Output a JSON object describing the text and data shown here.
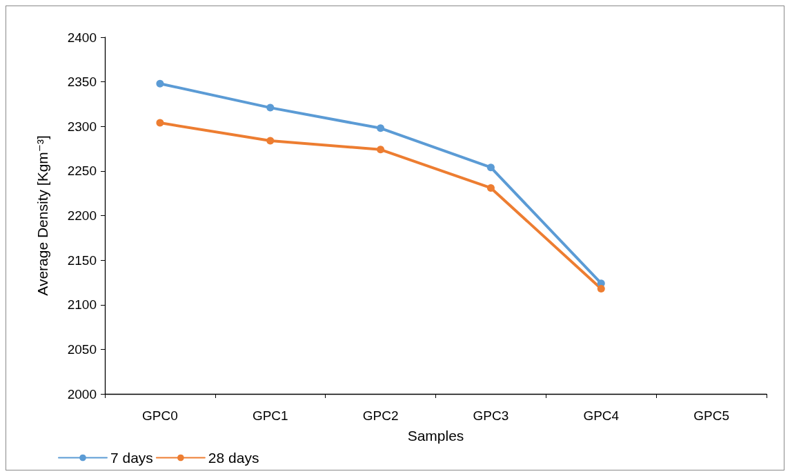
{
  "chart_data": {
    "type": "line",
    "xlabel": "Samples",
    "ylabel": "Average Density [Kgm⁻³]",
    "categories": [
      "GPC0",
      "GPC1",
      "GPC2",
      "GPC3",
      "GPC4",
      "GPC5"
    ],
    "series": [
      {
        "name": "7 days",
        "color": "#5b9bd5",
        "values": [
          2348,
          2321,
          2298,
          2254,
          2124,
          null
        ]
      },
      {
        "name": "28 days",
        "color": "#ed7d31",
        "values": [
          2304,
          2284,
          2274,
          2231,
          2118,
          null
        ]
      }
    ],
    "ylim": [
      2000,
      2400
    ],
    "yticks": [
      2000,
      2050,
      2100,
      2150,
      2200,
      2250,
      2300,
      2350,
      2400
    ],
    "grid": false,
    "legend": "bottom left",
    "marker": "circle",
    "line_style": "solid"
  }
}
